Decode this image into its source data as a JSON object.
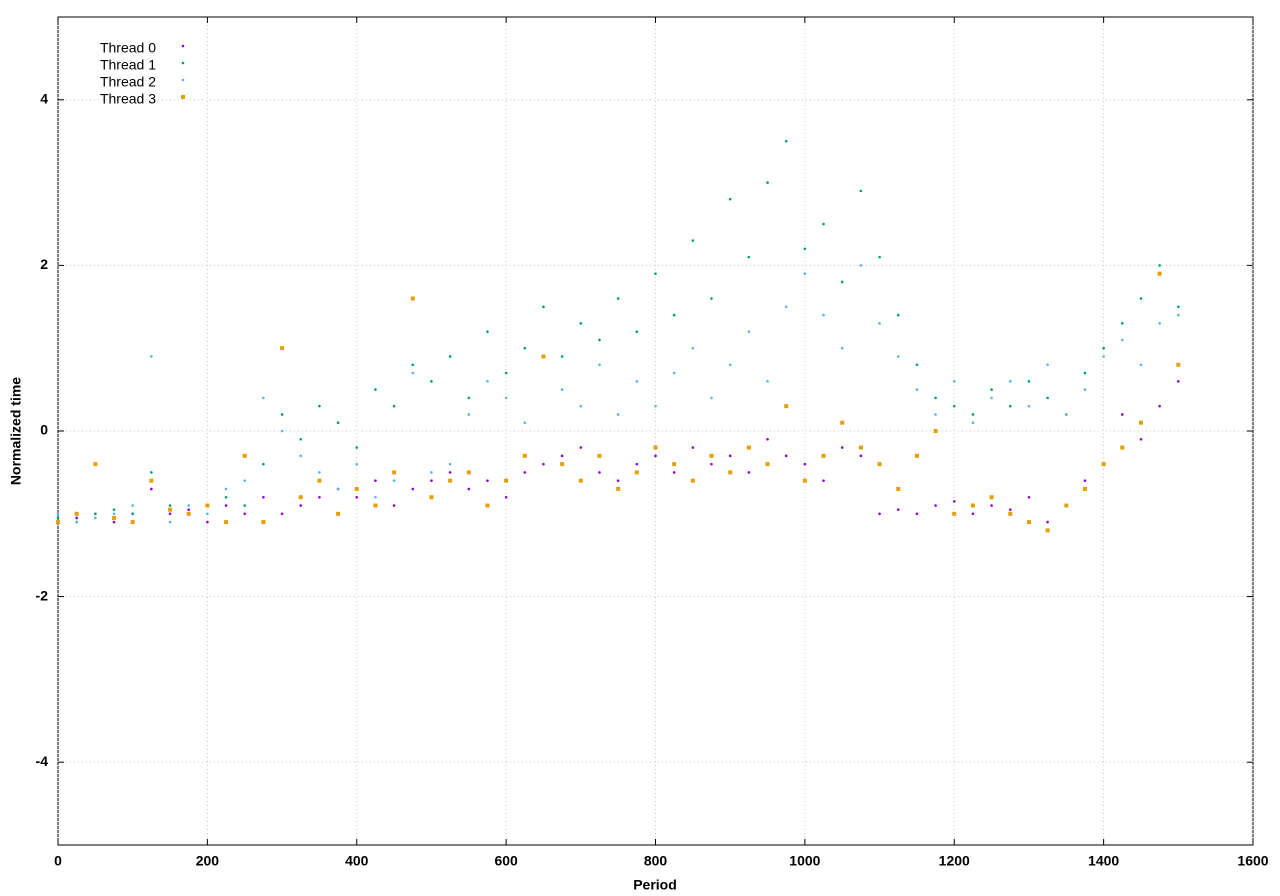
{
  "chart_data": {
    "type": "scatter",
    "x_label": "Period",
    "y_label": "Normalized time",
    "x": [
      0,
      25,
      50,
      75,
      100,
      125,
      150,
      175,
      200,
      225,
      250,
      275,
      300,
      325,
      350,
      375,
      400,
      425,
      450,
      475,
      500,
      525,
      550,
      575,
      600,
      625,
      650,
      675,
      700,
      725,
      750,
      775,
      800,
      825,
      850,
      875,
      900,
      925,
      950,
      975,
      1000,
      1025,
      1050,
      1075,
      1100,
      1125,
      1150,
      1175,
      1200,
      1225,
      1250,
      1275,
      1300,
      1325,
      1350,
      1375,
      1400,
      1425,
      1450,
      1475,
      1500
    ],
    "series": [
      {
        "name": "Thread 0",
        "color": "#9400d3",
        "marker": "dot",
        "values": [
          -1.1,
          -1.05,
          -1.0,
          -1.1,
          -1.0,
          -0.7,
          -1.0,
          -0.95,
          -1.1,
          -0.9,
          -1.0,
          -0.8,
          -1.0,
          -0.9,
          -0.8,
          -0.7,
          -0.8,
          -0.6,
          -0.9,
          -0.7,
          -0.6,
          -0.5,
          -0.7,
          -0.6,
          -0.8,
          -0.5,
          -0.4,
          -0.3,
          -0.2,
          -0.5,
          -0.6,
          -0.4,
          -0.3,
          -0.5,
          -0.2,
          -0.4,
          -0.3,
          -0.5,
          -0.1,
          -0.3,
          -0.4,
          -0.6,
          -0.2,
          -0.3,
          -1.0,
          -0.95,
          -1.0,
          -0.9,
          -0.85,
          -1.0,
          -0.9,
          -0.95,
          -0.8,
          -1.1,
          -0.9,
          -0.6,
          -0.4,
          0.2,
          -0.1,
          0.3,
          0.6
        ]
      },
      {
        "name": "Thread 1",
        "color": "#009e73",
        "marker": "dot",
        "values": [
          -1.05,
          -1.1,
          -1.0,
          -0.95,
          -1.0,
          -0.5,
          -0.9,
          -1.0,
          -0.9,
          -0.8,
          -0.9,
          -0.4,
          0.2,
          -0.1,
          0.3,
          0.1,
          -0.2,
          0.5,
          0.3,
          0.8,
          0.6,
          0.9,
          0.4,
          1.2,
          0.7,
          1.0,
          1.5,
          0.9,
          1.3,
          1.1,
          1.6,
          1.2,
          1.9,
          1.4,
          2.3,
          1.6,
          2.8,
          2.1,
          3.0,
          3.5,
          2.2,
          2.5,
          1.8,
          2.9,
          2.1,
          1.4,
          0.8,
          0.4,
          0.3,
          0.2,
          0.5,
          0.3,
          0.6,
          0.4,
          0.2,
          0.7,
          1.0,
          1.3,
          1.6,
          2.0,
          1.5
        ]
      },
      {
        "name": "Thread 2",
        "color": "#56b4e9",
        "marker": "dot",
        "values": [
          -1.0,
          -1.1,
          -1.05,
          -1.0,
          -0.9,
          0.9,
          -1.1,
          -0.9,
          -1.0,
          -0.7,
          -0.6,
          0.4,
          0.0,
          -0.3,
          -0.5,
          -0.7,
          -0.4,
          -0.8,
          -0.6,
          0.7,
          -0.5,
          -0.4,
          0.2,
          0.6,
          0.4,
          0.1,
          0.9,
          0.5,
          0.3,
          0.8,
          0.2,
          0.6,
          0.3,
          0.7,
          1.0,
          0.4,
          0.8,
          1.2,
          0.6,
          1.5,
          1.9,
          1.4,
          1.0,
          2.0,
          1.3,
          0.9,
          0.5,
          0.2,
          0.6,
          0.1,
          0.4,
          0.6,
          0.3,
          0.8,
          0.2,
          0.5,
          0.9,
          1.1,
          0.8,
          1.3,
          1.4
        ]
      },
      {
        "name": "Thread 3",
        "color": "#e69f00",
        "marker": "square",
        "values": [
          -1.1,
          -1.0,
          -0.4,
          -1.05,
          -1.1,
          -0.6,
          -0.95,
          -1.0,
          -0.9,
          -1.1,
          -0.3,
          -1.1,
          1.0,
          -0.8,
          -0.6,
          -1.0,
          -0.7,
          -0.9,
          -0.5,
          1.6,
          -0.8,
          -0.6,
          -0.5,
          -0.9,
          -0.6,
          -0.3,
          0.9,
          -0.4,
          -0.6,
          -0.3,
          -0.7,
          -0.5,
          -0.2,
          -0.4,
          -0.6,
          -0.3,
          -0.5,
          -0.2,
          -0.4,
          0.3,
          -0.6,
          -0.3,
          0.1,
          -0.2,
          -0.4,
          -0.7,
          -0.3,
          0.0,
          -1.0,
          -0.9,
          -0.8,
          -1.0,
          -1.1,
          -1.2,
          -0.9,
          -0.7,
          -0.4,
          -0.2,
          0.1,
          1.9,
          0.8
        ]
      }
    ],
    "xlim": [
      0,
      1600
    ],
    "xticks": [
      0,
      200,
      400,
      600,
      800,
      1000,
      1200,
      1400,
      1600
    ],
    "ylim": [
      -5,
      5
    ],
    "yticks": [
      -4,
      -2,
      0,
      2,
      4
    ],
    "grid": true,
    "legend": "top-left"
  }
}
